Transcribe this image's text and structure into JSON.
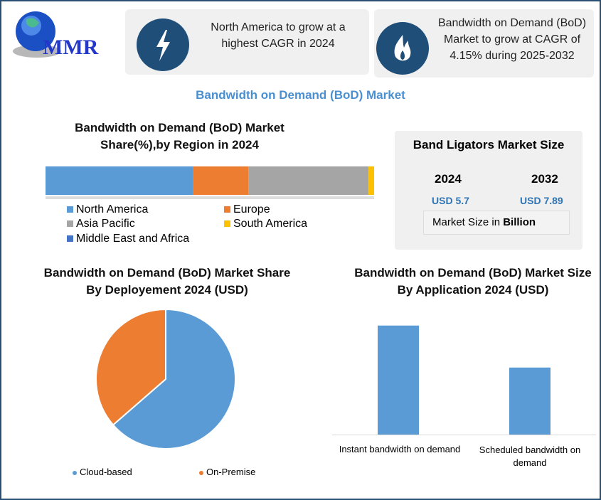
{
  "logo": {
    "text": "MMR"
  },
  "cards": [
    {
      "icon": "lightning-icon",
      "text": "North America to grow at a highest CAGR in 2024"
    },
    {
      "icon": "flame-icon",
      "text": "Bandwidth on Demand (BoD) Market to grow at CAGR of 4.15% during 2025-2032"
    }
  ],
  "main_title": "Bandwidth on Demand (BoD) Market",
  "market_size": {
    "title": "Band Ligators Market Size",
    "years": [
      "2024",
      "2032"
    ],
    "values": [
      "USD 5.7",
      "USD 7.89"
    ],
    "unit_prefix": "Market Size in ",
    "unit_bold": "Billion"
  },
  "chart_data": [
    {
      "type": "bar",
      "orientation": "horizontal-stacked",
      "title": "Bandwidth on Demand (BoD) Market Share(%),by Region in 2024",
      "series": [
        {
          "name": "North America",
          "values": [
            45
          ],
          "color": "#5b9bd5"
        },
        {
          "name": "Europe",
          "values": [
            16.7
          ],
          "color": "#ed7d31"
        },
        {
          "name": "Asia Pacific",
          "values": [
            36.6
          ],
          "color": "#a5a5a5"
        },
        {
          "name": "South America",
          "values": [
            1.7
          ],
          "color": "#ffc000"
        },
        {
          "name": "Middle East and Africa",
          "values": [
            0
          ],
          "color": "#4472c4"
        }
      ],
      "legend": "bottom"
    },
    {
      "type": "pie",
      "title": "Bandwidth on Demand (BoD) Market Share By Deployement  2024  (USD)",
      "categories": [
        "Cloud-based",
        "On-Premise"
      ],
      "values": [
        63.6,
        36.4
      ],
      "colors": [
        "#5b9bd5",
        "#ed7d31"
      ],
      "legend": "bottom"
    },
    {
      "type": "bar",
      "title": "Bandwidth on Demand (BoD) Market Size By Application 2024  (USD)",
      "categories": [
        "Instant bandwidth on demand",
        "Scheduled bandwidth on demand"
      ],
      "values": [
        3.53,
        2.17
      ],
      "color": "#5b9bd5",
      "ylim": [
        0,
        3.8
      ],
      "grid": false
    }
  ]
}
